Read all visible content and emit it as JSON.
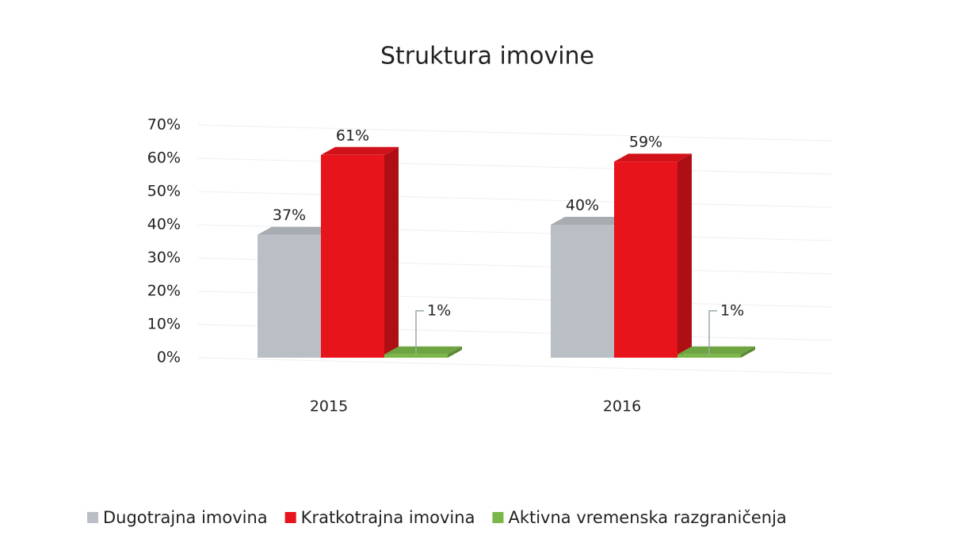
{
  "chart_data": {
    "type": "bar3d",
    "title": "Struktura imovine",
    "categories": [
      "2015",
      "2016"
    ],
    "series": [
      {
        "name": "Dugotrajna imovina",
        "color": "#b9bfc5",
        "values": [
          37,
          40
        ],
        "value_labels": [
          "37%",
          "40%"
        ]
      },
      {
        "name": "Kratkotrajna imovina",
        "color": "#e8141c",
        "values": [
          61,
          59
        ],
        "value_labels": [
          "61%",
          "59%"
        ]
      },
      {
        "name": "Aktivna vremenska razgraničenja",
        "color": "#7ab648",
        "values": [
          1,
          1
        ],
        "value_labels": [
          "1%",
          "1%"
        ]
      }
    ],
    "ylim": [
      0,
      70
    ],
    "yticks": [
      {
        "value": 0,
        "label": "0%"
      },
      {
        "value": 10,
        "label": "10%"
      },
      {
        "value": 20,
        "label": "20%"
      },
      {
        "value": 30,
        "label": "30%"
      },
      {
        "value": 40,
        "label": "40%"
      },
      {
        "value": 50,
        "label": "50%"
      },
      {
        "value": 60,
        "label": "60%"
      },
      {
        "value": 70,
        "label": "70%"
      }
    ],
    "grid": true,
    "legend": "bottom"
  }
}
